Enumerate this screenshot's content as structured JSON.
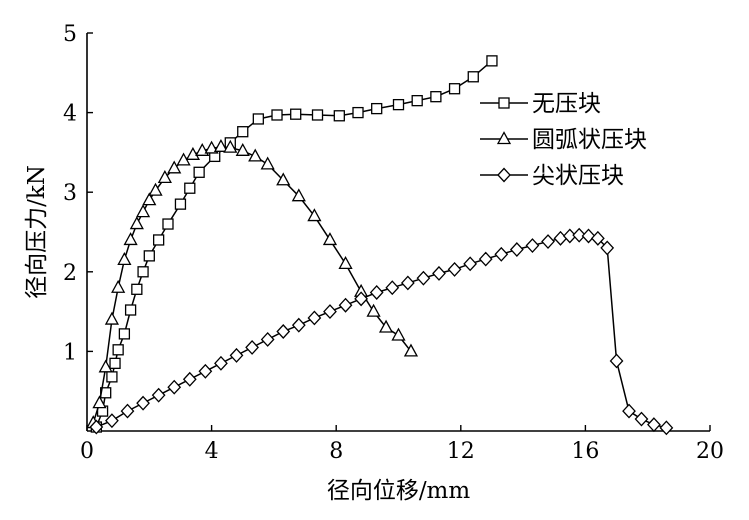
{
  "chart_data": {
    "type": "line",
    "xlabel": "径向位移/mm",
    "ylabel": "径向压力/kN",
    "xlim": [
      0,
      20
    ],
    "ylim": [
      0,
      5
    ],
    "xticks": [
      0,
      4,
      8,
      12,
      16,
      20
    ],
    "yticks": [
      1,
      2,
      3,
      4,
      5
    ],
    "grid": false,
    "legend_position": "top-right",
    "series": [
      {
        "name": "无压块",
        "marker": "square",
        "x": [
          0.3,
          0.5,
          0.6,
          0.8,
          0.9,
          1.0,
          1.2,
          1.4,
          1.6,
          1.8,
          2.0,
          2.3,
          2.6,
          3.0,
          3.3,
          3.6,
          4.1,
          4.6,
          5.0,
          5.5,
          6.1,
          6.7,
          7.4,
          8.1,
          8.7,
          9.3,
          10.0,
          10.6,
          11.2,
          11.8,
          12.4,
          13.0
        ],
        "y": [
          0.05,
          0.25,
          0.48,
          0.68,
          0.85,
          1.02,
          1.22,
          1.52,
          1.78,
          2.0,
          2.2,
          2.4,
          2.6,
          2.85,
          3.05,
          3.25,
          3.45,
          3.62,
          3.76,
          3.92,
          3.97,
          3.98,
          3.97,
          3.96,
          4.0,
          4.05,
          4.1,
          4.15,
          4.2,
          4.3,
          4.45,
          4.65
        ]
      },
      {
        "name": "圆弧状压块",
        "marker": "triangle",
        "x": [
          0.2,
          0.4,
          0.6,
          0.8,
          1.0,
          1.2,
          1.4,
          1.6,
          1.8,
          2.0,
          2.2,
          2.5,
          2.8,
          3.1,
          3.4,
          3.7,
          4.0,
          4.3,
          4.6,
          5.0,
          5.4,
          5.8,
          6.3,
          6.8,
          7.3,
          7.8,
          8.3,
          8.8,
          9.2,
          9.6,
          10.0,
          10.4
        ],
        "y": [
          0.1,
          0.35,
          0.8,
          1.4,
          1.8,
          2.15,
          2.4,
          2.6,
          2.75,
          2.9,
          3.02,
          3.18,
          3.3,
          3.4,
          3.47,
          3.52,
          3.55,
          3.57,
          3.56,
          3.52,
          3.45,
          3.35,
          3.15,
          2.95,
          2.7,
          2.4,
          2.1,
          1.75,
          1.5,
          1.3,
          1.2,
          1.0
        ]
      },
      {
        "name": "尖状压块",
        "marker": "diamond",
        "x": [
          0.3,
          0.8,
          1.3,
          1.8,
          2.3,
          2.8,
          3.3,
          3.8,
          4.3,
          4.8,
          5.3,
          5.8,
          6.3,
          6.8,
          7.3,
          7.8,
          8.3,
          8.8,
          9.3,
          9.8,
          10.3,
          10.8,
          11.3,
          11.8,
          12.3,
          12.8,
          13.3,
          13.8,
          14.3,
          14.8,
          15.2,
          15.5,
          15.8,
          16.1,
          16.4,
          16.7,
          17.0,
          17.4,
          17.8,
          18.2,
          18.6
        ],
        "y": [
          0.05,
          0.13,
          0.25,
          0.35,
          0.45,
          0.55,
          0.65,
          0.75,
          0.85,
          0.95,
          1.05,
          1.15,
          1.25,
          1.33,
          1.42,
          1.5,
          1.58,
          1.66,
          1.74,
          1.8,
          1.86,
          1.92,
          1.98,
          2.03,
          2.1,
          2.16,
          2.22,
          2.28,
          2.33,
          2.38,
          2.42,
          2.45,
          2.46,
          2.45,
          2.42,
          2.3,
          0.88,
          0.25,
          0.15,
          0.08,
          0.04
        ]
      }
    ]
  }
}
